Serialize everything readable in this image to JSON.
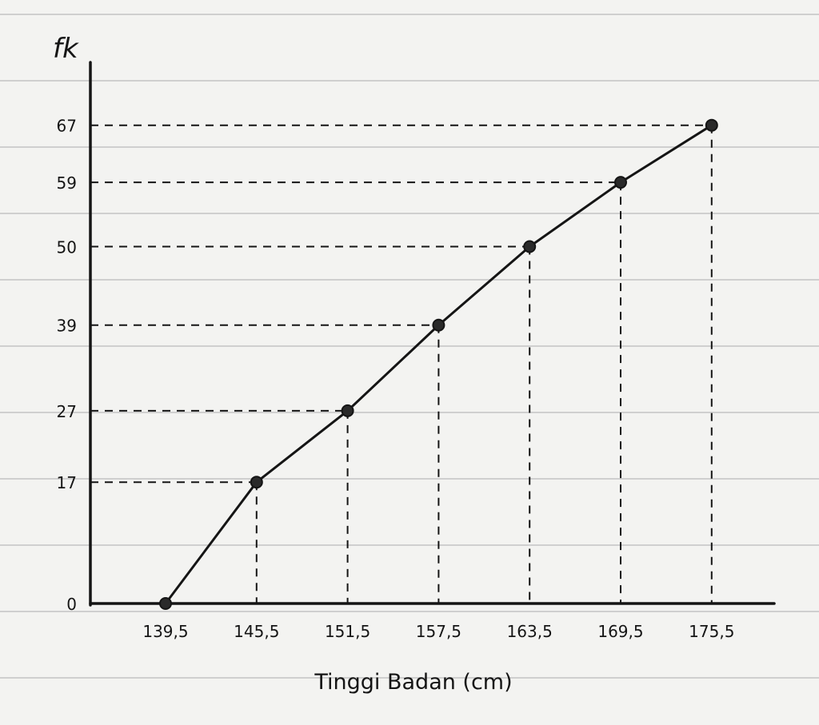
{
  "chart_data": {
    "type": "line",
    "title": "",
    "ylabel": "fk",
    "xlabel": "Tinggi Badan (cm)",
    "x": [
      "139,5",
      "145,5",
      "151,5",
      "157,5",
      "163,5",
      "169,5",
      "175,5"
    ],
    "x_tick_labels": [
      "139,5",
      "145,5",
      "151,5",
      "157,5",
      "163,5",
      "169,5",
      "175,5"
    ],
    "x_values": [
      139.5,
      145.5,
      151.5,
      157.5,
      163.5,
      169.5,
      175.5
    ],
    "y_values": [
      0,
      17,
      27,
      39,
      50,
      59,
      67
    ],
    "y_tick_labels": [
      "0",
      "17",
      "27",
      "39",
      "50",
      "59",
      "67"
    ],
    "markers": "filled circles",
    "guides": "dashed lines to both axes",
    "background": "lined notebook paper",
    "colors": {
      "ink": "#151515",
      "paper": "#f3f3f1",
      "rule": "#cfcfcf"
    }
  }
}
